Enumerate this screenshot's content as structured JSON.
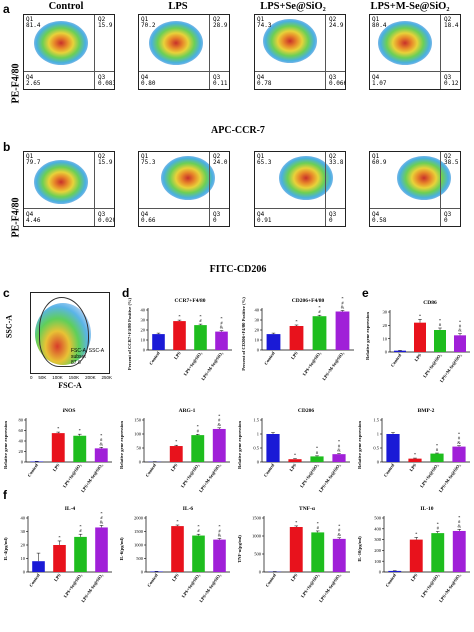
{
  "panel_labels": {
    "a": "a",
    "b": "b",
    "c": "c",
    "d": "d",
    "e": "e",
    "f": "f"
  },
  "groups": [
    "Control",
    "LPS",
    "LPS+Se@SiO₂",
    "LPS+M-Se@SiO₂"
  ],
  "flow_a": {
    "ylabel": "PE-F4/80",
    "xlabel": "APC-CCR-7",
    "plots": [
      {
        "q1": "Q1",
        "q1v": "81.4",
        "q2": "Q2",
        "q2v": "15.9",
        "q3": "Q3",
        "q3v": "0.083",
        "q4": "Q4",
        "q4v": "2.65"
      },
      {
        "q1": "Q1",
        "q1v": "70.2",
        "q2": "Q2",
        "q2v": "28.9",
        "q3": "Q3",
        "q3v": "0.11",
        "q4": "Q4",
        "q4v": "0.80"
      },
      {
        "q1": "Q1",
        "q1v": "74.3",
        "q2": "Q2",
        "q2v": "24.9",
        "q3": "Q3",
        "q3v": "0.066",
        "q4": "Q4",
        "q4v": "0.78"
      },
      {
        "q1": "Q1",
        "q1v": "80.4",
        "q2": "Q2",
        "q2v": "18.4",
        "q3": "Q3",
        "q3v": "0.12",
        "q4": "Q4",
        "q4v": "1.07"
      }
    ]
  },
  "flow_b": {
    "ylabel": "PE-F4/80",
    "xlabel": "FITC-CD206",
    "plots": [
      {
        "q1": "Q1",
        "q1v": "79.7",
        "q2": "Q2",
        "q2v": "15.9",
        "q3": "Q3",
        "q3v": "0.020",
        "q4": "Q4",
        "q4v": "4.46"
      },
      {
        "q1": "Q1",
        "q1v": "75.3",
        "q2": "Q2",
        "q2v": "24.0",
        "q3": "Q3",
        "q3v": "0",
        "q4": "Q4",
        "q4v": "0.66"
      },
      {
        "q1": "Q1",
        "q1v": "65.3",
        "q2": "Q2",
        "q2v": "33.8",
        "q3": "Q3",
        "q3v": "0",
        "q4": "Q4",
        "q4v": "0.91"
      },
      {
        "q1": "Q1",
        "q1v": "60.9",
        "q2": "Q2",
        "q2v": "38.5",
        "q3": "Q3",
        "q3v": "0",
        "q4": "Q4",
        "q4v": "0.58"
      }
    ]
  },
  "gate_c": {
    "ylabel": "SSC-A",
    "xlabel": "FSC-A",
    "gate_name": "FSC-A, SSC-A subset",
    "gate_value": "87.6",
    "ticks": [
      "0",
      "50K",
      "100K",
      "150K",
      "200K",
      "250K"
    ]
  },
  "colors": {
    "control": "#1a1ad6",
    "lps": "#e8121c",
    "se": "#1ebd1e",
    "mse": "#a020d8"
  },
  "cat_labels": [
    "Control",
    "LPS",
    "LPS+Se@SiO₂",
    "LPS+M-Se@SiO₂"
  ],
  "chart_data": [
    {
      "id": "d1",
      "type": "bar",
      "title": "CCR7+F4/80",
      "ylabel": "Percent of CCR7+F4/80 Positive (%)",
      "ylim": [
        0,
        40
      ],
      "yticks": [
        0,
        10,
        20,
        30,
        40
      ],
      "values": [
        15.9,
        28.9,
        24.9,
        18.4
      ],
      "errors": [
        1,
        1,
        1,
        1
      ],
      "sig": [
        "",
        "*",
        "*\n#",
        "*\n#\n&"
      ]
    },
    {
      "id": "d2",
      "type": "bar",
      "title": "CD206+F4/80",
      "ylabel": "Percent of CD206+F4/80 Positive (%)",
      "ylim": [
        0,
        40
      ],
      "yticks": [
        0,
        10,
        20,
        30,
        40
      ],
      "values": [
        15.9,
        24.0,
        33.8,
        38.5
      ],
      "errors": [
        1,
        1,
        1,
        1
      ],
      "sig": [
        "",
        "*",
        "*\n#",
        "*\n#\n&"
      ]
    },
    {
      "id": "e1",
      "type": "bar",
      "title": "CD86",
      "ylabel": "Relative gene expression",
      "ylim": [
        0,
        30
      ],
      "yticks": [
        0,
        10,
        20,
        30
      ],
      "values": [
        1,
        22,
        16.5,
        12.5
      ],
      "errors": [
        0.2,
        2.5,
        1.5,
        1.2
      ],
      "sig": [
        "",
        "*",
        "*\n#",
        "*\n#\n&"
      ]
    },
    {
      "id": "e2",
      "type": "bar",
      "title": "iNOS",
      "ylabel": "Relative gene expression",
      "ylim": [
        0,
        80
      ],
      "yticks": [
        0,
        20,
        40,
        60,
        80
      ],
      "values": [
        1,
        55,
        50,
        26
      ],
      "errors": [
        0.3,
        2,
        3,
        2
      ],
      "sig": [
        "",
        "*",
        "*",
        "*\n#\n&"
      ]
    },
    {
      "id": "e3",
      "type": "bar",
      "title": "ARG-1",
      "ylabel": "Relative gene expression",
      "ylim": [
        0,
        150
      ],
      "yticks": [
        0,
        50,
        100,
        150
      ],
      "values": [
        1,
        57,
        96,
        118
      ],
      "errors": [
        0.3,
        3,
        3,
        4
      ],
      "sig": [
        "",
        "*",
        "*\n#",
        "*\n#\n&"
      ]
    },
    {
      "id": "e4",
      "type": "bar",
      "title": "CD206",
      "ylabel": "Relative gene expression",
      "ylim": [
        0,
        1.5
      ],
      "yticks": [
        0,
        0.5,
        1,
        1.5
      ],
      "values": [
        1,
        0.1,
        0.2,
        0.28
      ],
      "errors": [
        0.05,
        0.02,
        0.02,
        0.02
      ],
      "sig": [
        "",
        "*",
        "*\n#",
        "*\n#\n&"
      ]
    },
    {
      "id": "e5",
      "type": "bar",
      "title": "BMP-2",
      "ylabel": "Relative gene expression",
      "ylim": [
        0,
        1.5
      ],
      "yticks": [
        0,
        0.5,
        1,
        1.5
      ],
      "values": [
        1,
        0.12,
        0.3,
        0.55
      ],
      "errors": [
        0.05,
        0.02,
        0.02,
        0.03
      ],
      "sig": [
        "",
        "*",
        "*\n#",
        "*\n#\n&"
      ]
    },
    {
      "id": "f1",
      "type": "bar",
      "title": "IL-4",
      "ylabel": "IL-4(pg/ml)",
      "ylim": [
        0,
        40
      ],
      "yticks": [
        0,
        10,
        20,
        30,
        40
      ],
      "values": [
        8,
        20,
        26,
        33
      ],
      "errors": [
        6,
        3,
        2,
        1.5
      ],
      "sig": [
        "",
        "*",
        "*\n#",
        "*\n#\n&"
      ]
    },
    {
      "id": "f2",
      "type": "bar",
      "title": "IL-6",
      "ylabel": "IL-6(pg/ml)",
      "ylim": [
        0,
        2000
      ],
      "yticks": [
        0,
        500,
        1000,
        1500,
        2000
      ],
      "values": [
        20,
        1700,
        1350,
        1200
      ],
      "errors": [
        5,
        40,
        50,
        40
      ],
      "sig": [
        "",
        "*",
        "*\n#",
        "*\n#\n&"
      ]
    },
    {
      "id": "f3",
      "type": "bar",
      "title": "TNF-α",
      "ylabel": "TNF-α(pg/ml)",
      "ylim": [
        0,
        1500
      ],
      "yticks": [
        0,
        500,
        1000,
        1500
      ],
      "values": [
        10,
        1250,
        1100,
        920
      ],
      "errors": [
        3,
        30,
        40,
        30
      ],
      "sig": [
        "",
        "*",
        "*\n#",
        "*\n#\n&"
      ]
    },
    {
      "id": "f4",
      "type": "bar",
      "title": "IL-10",
      "ylabel": "IL-10(pg/ml)",
      "ylim": [
        0,
        500
      ],
      "yticks": [
        0,
        100,
        200,
        300,
        400,
        500
      ],
      "values": [
        10,
        300,
        360,
        380
      ],
      "errors": [
        2,
        20,
        15,
        15
      ],
      "sig": [
        "",
        "*",
        "*\n#",
        "*\n#\n&"
      ]
    }
  ]
}
